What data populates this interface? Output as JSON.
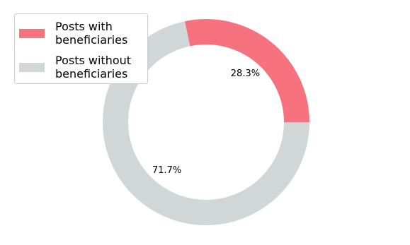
{
  "chart_data": {
    "type": "donut",
    "categories": [
      "Posts with\nbeneficiaries",
      "Posts without\nbeneficiaries"
    ],
    "values": [
      28.3,
      71.7
    ],
    "value_labels": [
      "28.3%",
      "71.7%"
    ],
    "colors": [
      "#f7727f",
      "#d1d6d6"
    ],
    "legend": "upper left"
  }
}
